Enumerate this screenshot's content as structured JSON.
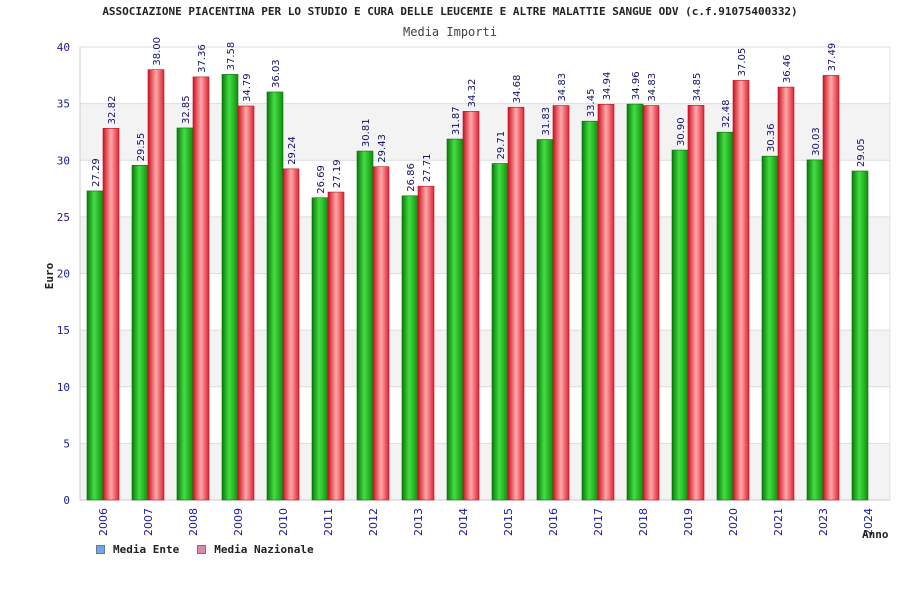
{
  "chart_data": {
    "type": "bar",
    "title": "ASSOCIAZIONE PIACENTINA PER LO STUDIO E CURA DELLE LEUCEMIE E ALTRE MALATTIE SANGUE ODV (c.f.91075400332)",
    "subtitle": "Media Importi",
    "ylabel": "Euro",
    "xlabel": "Anno",
    "ylim": [
      0,
      40
    ],
    "yticks": [
      0,
      5,
      10,
      15,
      20,
      25,
      30,
      35,
      40
    ],
    "grid": true,
    "legend_position": "bottom-left",
    "categories": [
      "2006",
      "2007",
      "2008",
      "2009",
      "2010",
      "2011",
      "2012",
      "2013",
      "2014",
      "2015",
      "2016",
      "2017",
      "2018",
      "2019",
      "2020",
      "2021",
      "2023",
      "2024"
    ],
    "series": [
      {
        "name": "Media Ente",
        "color": "#22bb22",
        "swatch_color": "#66aaee",
        "values": [
          27.29,
          29.55,
          32.85,
          37.58,
          36.03,
          26.69,
          30.81,
          26.86,
          31.87,
          29.71,
          31.83,
          33.45,
          34.96,
          30.9,
          32.48,
          30.36,
          30.03,
          29.05
        ],
        "labels": [
          "27.29",
          "29.55",
          "32.85",
          "37.58",
          "36.03",
          "26.69",
          "30.81",
          "26.86",
          "31.87",
          "29.71",
          "31.83",
          "33.45",
          "34.96",
          "30.90",
          "32.48",
          "30.36",
          "30.03",
          "29.05"
        ]
      },
      {
        "name": "Media Nazionale",
        "color": "#ee3344",
        "swatch_color": "#dd88aa",
        "values": [
          32.82,
          38.0,
          37.36,
          34.79,
          29.24,
          27.19,
          29.43,
          27.71,
          34.32,
          34.68,
          34.83,
          34.94,
          34.83,
          34.85,
          37.05,
          36.46,
          37.49,
          null
        ],
        "labels": [
          "32.82",
          "38.00",
          "37.36",
          "34.79",
          "29.24",
          "27.19",
          "29.43",
          "27.71",
          "34.32",
          "34.68",
          "34.83",
          "34.94",
          "34.83",
          "34.85",
          "37.05",
          "36.46",
          "37.49",
          ""
        ]
      }
    ]
  }
}
